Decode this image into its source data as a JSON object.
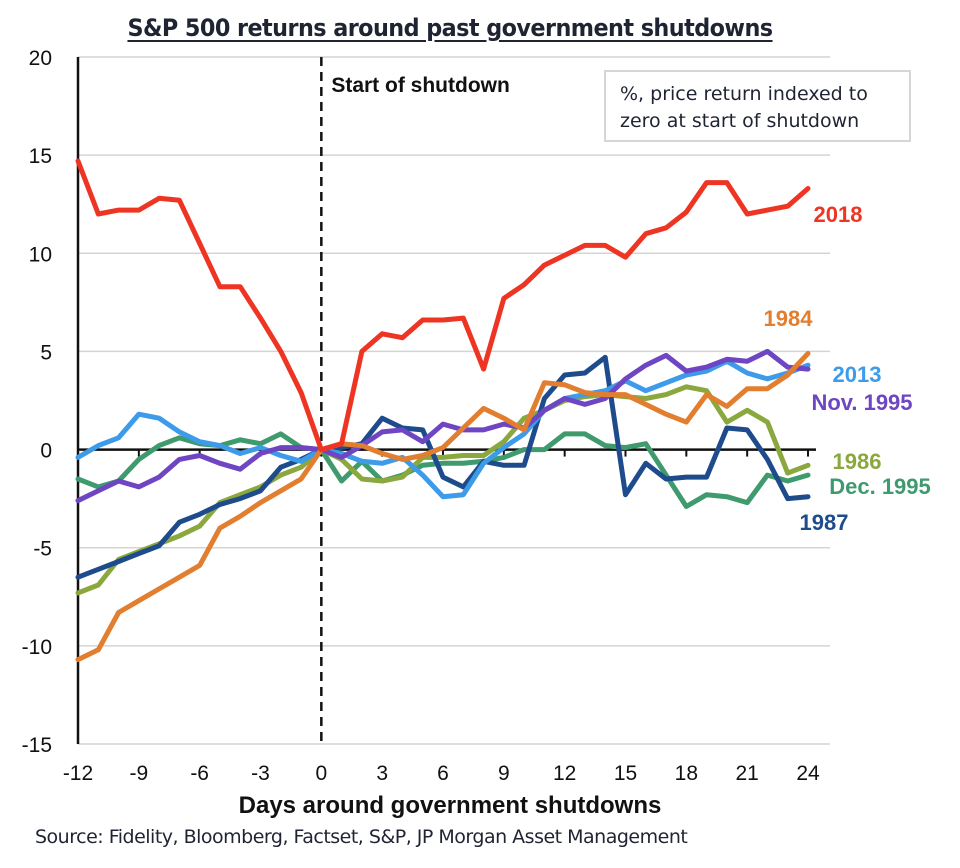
{
  "chart_data": {
    "type": "line",
    "title": "S&P 500 returns around past government shutdowns",
    "xlabel": "Days around government shutdowns",
    "ylabel": "",
    "xlim": [
      -12,
      24
    ],
    "ylim": [
      -15,
      20
    ],
    "x_ticks": [
      "-12",
      "-9",
      "-6",
      "-3",
      "0",
      "3",
      "6",
      "9",
      "12",
      "15",
      "18",
      "21",
      "24"
    ],
    "y_ticks": [
      "20",
      "15",
      "10",
      "5",
      "0",
      "-5",
      "-10",
      "-15"
    ],
    "grid": "horizontal",
    "legend": "inline-right",
    "vertical_marker": {
      "x": 0,
      "label": "Start of shutdown"
    },
    "annotation": "%, price return indexed to zero at start of shutdown",
    "source": "Source: Fidelity, Bloomberg, Factset, S&P, JP Morgan Asset Management",
    "x": [
      -12,
      -11,
      -10,
      -9,
      -8,
      -7,
      -6,
      -5,
      -4,
      -3,
      -2,
      -1,
      0,
      1,
      2,
      3,
      4,
      5,
      6,
      7,
      8,
      9,
      10,
      11,
      12,
      13,
      14,
      15,
      16,
      17,
      18,
      19,
      20,
      21,
      22,
      23,
      24
    ],
    "series": [
      {
        "name": "2018",
        "color": "#ee3524",
        "values": [
          14.7,
          12.0,
          12.2,
          12.2,
          12.8,
          12.7,
          10.5,
          8.3,
          8.3,
          6.7,
          5.0,
          2.9,
          0,
          0.3,
          5.0,
          5.9,
          5.7,
          6.6,
          6.6,
          6.7,
          4.1,
          7.7,
          8.4,
          9.4,
          9.9,
          10.4,
          10.4,
          9.8,
          11.0,
          11.3,
          12.1,
          13.6,
          13.6,
          12.0,
          12.2,
          12.4,
          13.3
        ]
      },
      {
        "name": "1984",
        "color": "#e27e2f",
        "values": [
          -10.7,
          -10.2,
          -8.3,
          -7.7,
          -7.1,
          -6.5,
          -5.9,
          -4.0,
          -3.4,
          -2.7,
          -2.1,
          -1.5,
          0,
          0.3,
          0.2,
          -0.2,
          -0.5,
          -0.3,
          0.1,
          1.1,
          2.1,
          1.6,
          1.0,
          3.4,
          3.3,
          2.9,
          2.8,
          2.8,
          2.3,
          1.8,
          1.4,
          2.8,
          2.2,
          3.1,
          3.1,
          3.8,
          4.9
        ]
      },
      {
        "name": "2013",
        "color": "#3d9be9",
        "values": [
          -0.4,
          0.2,
          0.6,
          1.8,
          1.6,
          0.9,
          0.4,
          0.2,
          -0.2,
          0.1,
          -0.3,
          -0.6,
          0,
          -0.2,
          -0.6,
          -0.7,
          -0.4,
          -1.3,
          -2.4,
          -2.3,
          -0.7,
          0.1,
          0.8,
          2.0,
          2.6,
          2.8,
          3.0,
          3.5,
          3.0,
          3.4,
          3.8,
          4.0,
          4.5,
          3.9,
          3.6,
          3.9,
          4.3
        ]
      },
      {
        "name": "Nov. 1995",
        "color": "#6e45c3",
        "values": [
          -2.6,
          -2.1,
          -1.6,
          -1.9,
          -1.4,
          -0.5,
          -0.3,
          -0.7,
          -1.0,
          -0.2,
          0.1,
          0.1,
          0,
          -0.4,
          0.2,
          0.9,
          1.0,
          0.4,
          1.3,
          1.0,
          1.0,
          1.3,
          1.1,
          2.0,
          2.6,
          2.3,
          2.6,
          3.6,
          4.3,
          4.8,
          4.0,
          4.2,
          4.6,
          4.5,
          5.0,
          4.2,
          4.1
        ]
      },
      {
        "name": "1986",
        "color": "#8aa83d",
        "values": [
          -7.3,
          -6.9,
          -5.6,
          -5.2,
          -4.8,
          -4.4,
          -3.9,
          -2.7,
          -2.3,
          -1.9,
          -1.3,
          -0.9,
          0,
          -0.5,
          -1.5,
          -1.6,
          -1.4,
          -0.4,
          -0.4,
          -0.3,
          -0.3,
          0.4,
          1.6,
          2.0,
          2.5,
          2.7,
          2.8,
          2.7,
          2.6,
          2.8,
          3.2,
          3.0,
          1.4,
          2.0,
          1.4,
          -1.2,
          -0.8
        ]
      },
      {
        "name": "Dec. 1995",
        "color": "#3f9a6d",
        "values": [
          -1.5,
          -1.9,
          -1.6,
          -0.5,
          0.2,
          0.6,
          0.3,
          0.2,
          0.5,
          0.3,
          0.8,
          0.1,
          0,
          -1.6,
          -0.6,
          -1.6,
          -1.3,
          -0.8,
          -0.7,
          -0.7,
          -0.6,
          -0.4,
          0.0,
          0.0,
          0.8,
          0.8,
          0.2,
          0.1,
          0.3,
          -1.3,
          -2.9,
          -2.3,
          -2.4,
          -2.7,
          -1.3,
          -1.6,
          -1.3
        ]
      },
      {
        "name": "1987",
        "color": "#1d4b8c",
        "values": [
          -6.5,
          -6.1,
          -5.7,
          -5.3,
          -4.9,
          -3.7,
          -3.3,
          -2.8,
          -2.5,
          -2.1,
          -0.9,
          -0.5,
          0,
          0.1,
          0.3,
          1.6,
          1.1,
          1.0,
          -1.4,
          -1.9,
          -0.6,
          -0.8,
          -0.8,
          2.6,
          3.8,
          3.9,
          4.7,
          -2.3,
          -0.7,
          -1.5,
          -1.4,
          -1.4,
          1.1,
          1.0,
          -0.5,
          -2.5,
          -2.4
        ]
      }
    ]
  }
}
